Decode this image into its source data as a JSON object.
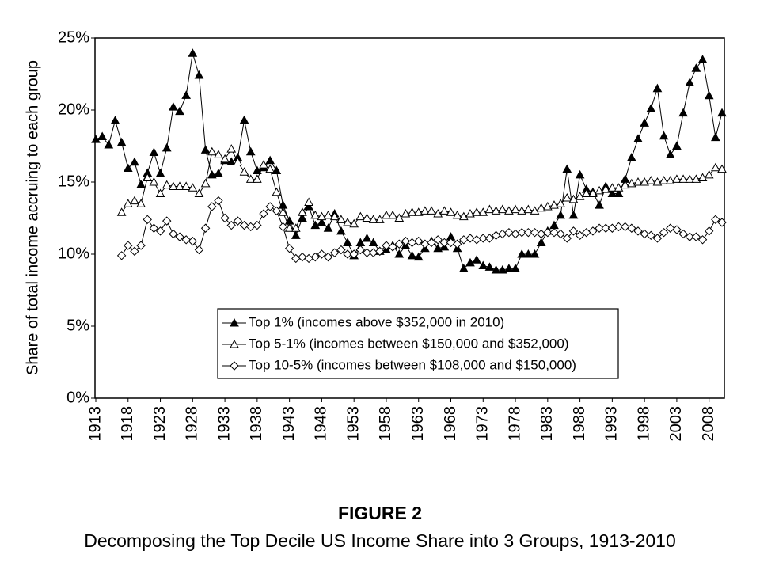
{
  "chart_data": {
    "type": "line",
    "title": "FIGURE 2",
    "subtitle": "Decomposing the Top Decile US Income Share into 3 Groups, 1913-2010",
    "y_label": "Share of total income accruing to each group",
    "x": [
      1913,
      1914,
      1915,
      1916,
      1917,
      1918,
      1919,
      1920,
      1921,
      1922,
      1923,
      1924,
      1925,
      1926,
      1927,
      1928,
      1929,
      1930,
      1931,
      1932,
      1933,
      1934,
      1935,
      1936,
      1937,
      1938,
      1939,
      1940,
      1941,
      1942,
      1943,
      1944,
      1945,
      1946,
      1947,
      1948,
      1949,
      1950,
      1951,
      1952,
      1953,
      1954,
      1955,
      1956,
      1957,
      1958,
      1959,
      1960,
      1961,
      1962,
      1963,
      1964,
      1965,
      1966,
      1967,
      1968,
      1969,
      1970,
      1971,
      1972,
      1973,
      1974,
      1975,
      1976,
      1977,
      1978,
      1979,
      1980,
      1981,
      1982,
      1983,
      1984,
      1985,
      1986,
      1987,
      1988,
      1989,
      1990,
      1991,
      1992,
      1993,
      1994,
      1995,
      1996,
      1997,
      1998,
      1999,
      2000,
      2001,
      2002,
      2003,
      2004,
      2005,
      2006,
      2007,
      2008,
      2009,
      2010
    ],
    "xlim": [
      1913,
      2010
    ],
    "xticks": [
      1913,
      1918,
      1923,
      1928,
      1933,
      1938,
      1943,
      1948,
      1953,
      1958,
      1963,
      1968,
      1973,
      1978,
      1983,
      1988,
      1993,
      1998,
      2003,
      2008
    ],
    "ylim": [
      0,
      25
    ],
    "yticks": [
      {
        "value": 0,
        "label": "0%"
      },
      {
        "value": 5,
        "label": "5%"
      },
      {
        "value": 10,
        "label": "10%"
      },
      {
        "value": 15,
        "label": "15%"
      },
      {
        "value": 20,
        "label": "20%"
      },
      {
        "value": 25,
        "label": "25%"
      }
    ],
    "grid": false,
    "series": [
      {
        "name": "Top 1% (incomes above $352,000 in 2010)",
        "color": "#000000",
        "marker": "triangle",
        "filled": true,
        "values": [
          17.96,
          18.16,
          17.58,
          19.27,
          17.75,
          15.96,
          16.39,
          14.83,
          15.63,
          17.06,
          15.6,
          17.37,
          20.21,
          19.91,
          21.02,
          23.94,
          22.42,
          17.23,
          15.5,
          15.6,
          16.5,
          16.4,
          16.7,
          19.3,
          17.1,
          15.8,
          16.0,
          16.5,
          15.8,
          13.4,
          12.3,
          11.3,
          12.5,
          13.3,
          12.0,
          12.2,
          11.8,
          12.8,
          11.6,
          10.8,
          9.9,
          10.8,
          11.1,
          10.8,
          10.2,
          10.3,
          10.6,
          10.0,
          10.6,
          9.9,
          9.8,
          10.4,
          10.9,
          10.4,
          10.5,
          11.2,
          10.4,
          9.0,
          9.4,
          9.6,
          9.2,
          9.1,
          8.9,
          8.9,
          9.0,
          9.0,
          10.0,
          10.0,
          10.0,
          10.8,
          11.6,
          12.0,
          12.7,
          15.9,
          12.7,
          15.5,
          14.5,
          14.3,
          13.4,
          14.7,
          14.2,
          14.2,
          15.2,
          16.7,
          18.0,
          19.1,
          20.1,
          21.5,
          18.2,
          16.9,
          17.5,
          19.8,
          21.9,
          22.9,
          23.5,
          21.0,
          18.1,
          19.8
        ]
      },
      {
        "name": "Top 5-1% (incomes between $150,000 and $352,000)",
        "color": "#000000",
        "marker": "triangle",
        "filled": false,
        "values": [
          null,
          null,
          null,
          null,
          12.9,
          13.5,
          13.7,
          13.5,
          15.3,
          15.0,
          14.2,
          14.8,
          14.7,
          14.7,
          14.7,
          14.6,
          14.2,
          14.9,
          17.1,
          16.9,
          16.6,
          17.3,
          16.4,
          15.7,
          15.2,
          15.2,
          16.2,
          15.9,
          14.3,
          12.9,
          11.8,
          11.8,
          12.9,
          13.6,
          12.7,
          12.6,
          12.7,
          12.6,
          12.4,
          12.2,
          12.1,
          12.6,
          12.5,
          12.4,
          12.4,
          12.7,
          12.7,
          12.5,
          12.8,
          12.9,
          12.9,
          13.0,
          13.0,
          12.8,
          13.0,
          12.9,
          12.7,
          12.6,
          12.8,
          12.9,
          12.9,
          13.1,
          13.0,
          13.1,
          13.0,
          13.1,
          13.0,
          13.1,
          13.0,
          13.2,
          13.3,
          13.4,
          13.5,
          13.9,
          13.8,
          14.0,
          14.2,
          14.2,
          14.4,
          14.5,
          14.6,
          14.6,
          14.8,
          14.9,
          15.0,
          15.0,
          15.1,
          15.0,
          15.1,
          15.1,
          15.2,
          15.2,
          15.2,
          15.2,
          15.3,
          15.5,
          16.0,
          15.9
        ]
      },
      {
        "name": "Top 10-5% (incomes between $108,000 and $150,000)",
        "color": "#000000",
        "marker": "diamond",
        "filled": false,
        "values": [
          null,
          null,
          null,
          null,
          9.9,
          10.6,
          10.2,
          10.6,
          12.4,
          11.8,
          11.6,
          12.3,
          11.4,
          11.2,
          11.0,
          10.9,
          10.3,
          11.8,
          13.3,
          13.7,
          12.5,
          12.0,
          12.3,
          12.0,
          11.9,
          12.0,
          12.8,
          13.3,
          13.0,
          11.9,
          10.4,
          9.7,
          9.8,
          9.7,
          9.8,
          10.0,
          9.8,
          10.1,
          10.3,
          10.0,
          10.0,
          10.3,
          10.1,
          10.1,
          10.2,
          10.6,
          10.5,
          10.7,
          10.9,
          10.8,
          10.9,
          10.7,
          10.8,
          11.0,
          10.8,
          10.8,
          10.7,
          11.0,
          11.1,
          11.0,
          11.1,
          11.1,
          11.3,
          11.4,
          11.5,
          11.4,
          11.5,
          11.5,
          11.5,
          11.4,
          11.5,
          11.5,
          11.4,
          11.1,
          11.6,
          11.3,
          11.5,
          11.6,
          11.8,
          11.8,
          11.8,
          11.9,
          11.9,
          11.8,
          11.6,
          11.4,
          11.3,
          11.1,
          11.5,
          11.8,
          11.7,
          11.4,
          11.2,
          11.2,
          11.0,
          11.6,
          12.4,
          12.2
        ]
      }
    ]
  }
}
